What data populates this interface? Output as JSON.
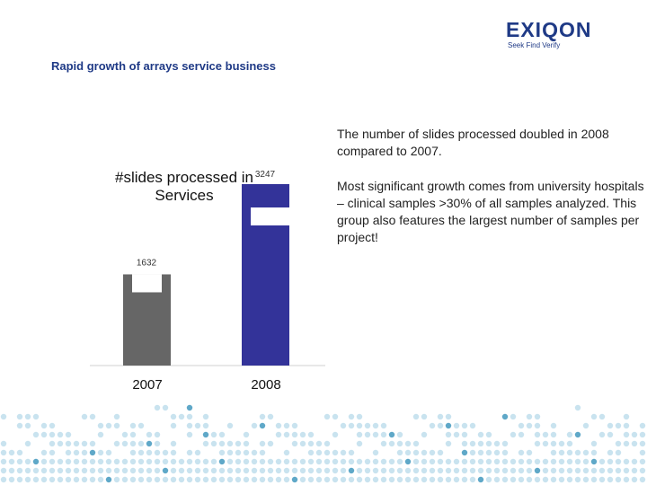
{
  "brand": {
    "name": "EXIQON",
    "tagline": "Seek Find Verify"
  },
  "slide": {
    "title": "Rapid growth of arrays service business",
    "body": [
      "The number of slides processed doubled in 2008 compared to 2007.",
      "Most significant growth comes from university hospitals – clinical samples >30% of all samples analyzed. This group also features the largest number of samples per project!"
    ]
  },
  "colors": {
    "brand_blue": "#1f3a86",
    "bar_2007": "#666666",
    "bar_2008": "#333399",
    "dots": "#c9e3ef"
  },
  "chart_data": {
    "type": "bar",
    "title": "#slides processed in Services",
    "categories": [
      "2007",
      "2008"
    ],
    "values": [
      1632,
      3247
    ],
    "data_labels": [
      "1632",
      "3247"
    ],
    "ylim": [
      0,
      3400
    ],
    "grid": false,
    "legend": "none"
  }
}
